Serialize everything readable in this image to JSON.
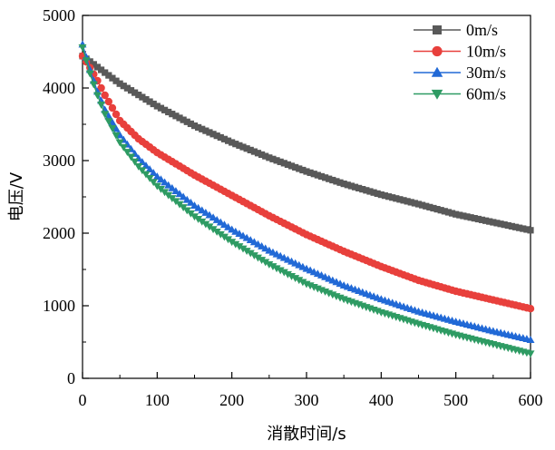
{
  "chart_data": {
    "type": "line",
    "title": "",
    "xlabel": "消散时间/s",
    "ylabel": "电压/V",
    "xlim": [
      0,
      600
    ],
    "ylim": [
      0,
      5000
    ],
    "xticks": [
      0,
      100,
      200,
      300,
      400,
      500,
      600
    ],
    "yticks": [
      0,
      1000,
      2000,
      3000,
      4000,
      5000
    ],
    "grid": false,
    "legend_position": "top-right",
    "series": [
      {
        "name": "0m/s",
        "color": "#595959",
        "marker": "square",
        "x": [
          0,
          50,
          100,
          150,
          200,
          250,
          300,
          350,
          400,
          450,
          500,
          550,
          600
        ],
        "y": [
          4440,
          4060,
          3750,
          3480,
          3250,
          3040,
          2850,
          2680,
          2530,
          2400,
          2260,
          2150,
          2040
        ]
      },
      {
        "name": "10m/s",
        "color": "#e8403c",
        "marker": "circle",
        "x": [
          0,
          10,
          20,
          30,
          50,
          75,
          100,
          150,
          200,
          250,
          300,
          350,
          400,
          450,
          500,
          550,
          600
        ],
        "y": [
          4440,
          4280,
          4100,
          3900,
          3550,
          3300,
          3110,
          2800,
          2520,
          2240,
          1980,
          1750,
          1540,
          1350,
          1200,
          1080,
          960
        ]
      },
      {
        "name": "30m/s",
        "color": "#2169d6",
        "marker": "triangle-up",
        "x": [
          0,
          10,
          20,
          30,
          50,
          75,
          100,
          150,
          200,
          250,
          300,
          350,
          400,
          450,
          500,
          550,
          600
        ],
        "y": [
          4600,
          4250,
          3950,
          3700,
          3350,
          3030,
          2780,
          2380,
          2050,
          1760,
          1510,
          1280,
          1090,
          920,
          780,
          650,
          530
        ]
      },
      {
        "name": "60m/s",
        "color": "#2e9b63",
        "marker": "triangle-down",
        "x": [
          0,
          10,
          20,
          30,
          50,
          75,
          100,
          150,
          200,
          250,
          300,
          350,
          400,
          450,
          500,
          550,
          600
        ],
        "y": [
          4560,
          4200,
          3900,
          3640,
          3250,
          2920,
          2650,
          2230,
          1880,
          1570,
          1300,
          1090,
          910,
          750,
          600,
          470,
          340
        ]
      }
    ]
  }
}
